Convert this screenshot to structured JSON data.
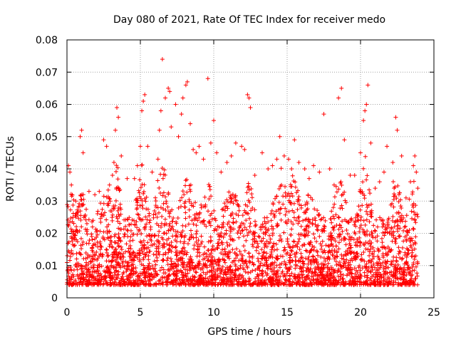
{
  "chart_data": {
    "type": "scatter",
    "title": "Day 080 of 2021, Rate Of TEC Index for receiver medo",
    "xlabel": "GPS time / hours",
    "ylabel": "ROTI / TECUs",
    "xlim": [
      0,
      25
    ],
    "ylim": [
      0,
      0.08
    ],
    "x_ticks": [
      0,
      5,
      10,
      15,
      20,
      25
    ],
    "x_tick_labels": [
      "0",
      "5",
      "10",
      "15",
      "20",
      "25"
    ],
    "y_ticks": [
      0,
      0.01,
      0.02,
      0.03,
      0.04,
      0.05,
      0.06,
      0.07,
      0.08
    ],
    "y_tick_labels": [
      "0",
      "0.01",
      "0.02",
      "0.03",
      "0.04",
      "0.05",
      "0.06",
      "0.07",
      "0.08"
    ],
    "grid": true,
    "marker": "plus",
    "color": "#ff0000",
    "series": [
      {
        "points": [
          [
            0.1,
            0.041
          ],
          [
            0.2,
            0.039
          ],
          [
            0.3,
            0.035
          ],
          [
            0.6,
            0.03
          ],
          [
            0.9,
            0.05
          ],
          [
            1.0,
            0.052
          ],
          [
            1.1,
            0.045
          ],
          [
            1.5,
            0.033
          ],
          [
            1.9,
            0.032
          ],
          [
            2.2,
            0.033
          ],
          [
            2.5,
            0.049
          ],
          [
            2.7,
            0.047
          ],
          [
            2.9,
            0.035
          ],
          [
            3.1,
            0.038
          ],
          [
            3.2,
            0.042
          ],
          [
            3.3,
            0.052
          ],
          [
            3.4,
            0.059
          ],
          [
            3.5,
            0.056
          ],
          [
            3.7,
            0.044
          ],
          [
            4.1,
            0.037
          ],
          [
            4.6,
            0.037
          ],
          [
            4.8,
            0.041
          ],
          [
            5.0,
            0.047
          ],
          [
            5.1,
            0.058
          ],
          [
            5.2,
            0.061
          ],
          [
            5.3,
            0.063
          ],
          [
            5.5,
            0.047
          ],
          [
            5.8,
            0.039
          ],
          [
            6.2,
            0.043
          ],
          [
            6.3,
            0.052
          ],
          [
            6.4,
            0.058
          ],
          [
            6.5,
            0.074
          ],
          [
            6.7,
            0.062
          ],
          [
            6.9,
            0.065
          ],
          [
            7.0,
            0.064
          ],
          [
            7.1,
            0.053
          ],
          [
            7.4,
            0.06
          ],
          [
            7.6,
            0.05
          ],
          [
            7.8,
            0.057
          ],
          [
            7.9,
            0.062
          ],
          [
            8.1,
            0.066
          ],
          [
            8.2,
            0.067
          ],
          [
            8.4,
            0.054
          ],
          [
            8.6,
            0.046
          ],
          [
            8.8,
            0.045
          ],
          [
            9.0,
            0.047
          ],
          [
            9.3,
            0.043
          ],
          [
            9.6,
            0.068
          ],
          [
            9.8,
            0.048
          ],
          [
            10.0,
            0.055
          ],
          [
            10.2,
            0.045
          ],
          [
            10.5,
            0.039
          ],
          [
            10.9,
            0.042
          ],
          [
            11.2,
            0.044
          ],
          [
            11.5,
            0.048
          ],
          [
            11.9,
            0.047
          ],
          [
            12.1,
            0.046
          ],
          [
            12.3,
            0.063
          ],
          [
            12.4,
            0.062
          ],
          [
            12.5,
            0.059
          ],
          [
            12.8,
            0.038
          ],
          [
            13.3,
            0.045
          ],
          [
            13.7,
            0.04
          ],
          [
            14.0,
            0.041
          ],
          [
            14.3,
            0.043
          ],
          [
            14.5,
            0.05
          ],
          [
            14.8,
            0.044
          ],
          [
            15.1,
            0.043
          ],
          [
            15.3,
            0.04
          ],
          [
            15.5,
            0.049
          ],
          [
            15.8,
            0.042
          ],
          [
            16.2,
            0.04
          ],
          [
            16.5,
            0.037
          ],
          [
            16.8,
            0.041
          ],
          [
            17.2,
            0.039
          ],
          [
            17.5,
            0.057
          ],
          [
            17.9,
            0.04
          ],
          [
            18.2,
            0.035
          ],
          [
            18.5,
            0.062
          ],
          [
            18.7,
            0.065
          ],
          [
            18.9,
            0.049
          ],
          [
            19.3,
            0.038
          ],
          [
            19.6,
            0.038
          ],
          [
            20.0,
            0.045
          ],
          [
            20.2,
            0.055
          ],
          [
            20.3,
            0.058
          ],
          [
            20.4,
            0.06
          ],
          [
            20.5,
            0.066
          ],
          [
            20.7,
            0.048
          ],
          [
            21.0,
            0.034
          ],
          [
            21.3,
            0.036
          ],
          [
            21.6,
            0.039
          ],
          [
            21.8,
            0.047
          ],
          [
            22.2,
            0.042
          ],
          [
            22.4,
            0.056
          ],
          [
            22.5,
            0.052
          ],
          [
            22.8,
            0.044
          ],
          [
            23.1,
            0.031
          ],
          [
            23.4,
            0.036
          ],
          [
            23.6,
            0.041
          ],
          [
            23.7,
            0.044
          ],
          [
            23.8,
            0.039
          ],
          [
            23.9,
            0.034
          ]
        ],
        "dense_band": {
          "x_range": [
            0.0,
            23.9
          ],
          "y_floor": 0.004,
          "y_base_ceiling": 0.025,
          "bursts": [
            {
              "x": 0.3,
              "width": 0.6,
              "height": 0.033
            },
            {
              "x": 1.0,
              "width": 0.5,
              "height": 0.034
            },
            {
              "x": 2.6,
              "width": 0.6,
              "height": 0.038
            },
            {
              "x": 3.4,
              "width": 0.5,
              "height": 0.043
            },
            {
              "x": 5.1,
              "width": 0.6,
              "height": 0.042
            },
            {
              "x": 6.5,
              "width": 0.8,
              "height": 0.044
            },
            {
              "x": 8.2,
              "width": 0.8,
              "height": 0.04
            },
            {
              "x": 9.6,
              "width": 0.7,
              "height": 0.037
            },
            {
              "x": 11.2,
              "width": 0.9,
              "height": 0.035
            },
            {
              "x": 12.4,
              "width": 0.5,
              "height": 0.038
            },
            {
              "x": 14.6,
              "width": 0.8,
              "height": 0.041
            },
            {
              "x": 15.5,
              "width": 0.9,
              "height": 0.04
            },
            {
              "x": 16.5,
              "width": 0.8,
              "height": 0.033
            },
            {
              "x": 18.6,
              "width": 0.7,
              "height": 0.041
            },
            {
              "x": 20.3,
              "width": 0.6,
              "height": 0.045
            },
            {
              "x": 22.4,
              "width": 0.5,
              "height": 0.042
            },
            {
              "x": 23.6,
              "width": 0.5,
              "height": 0.038
            }
          ],
          "density_per_hour": 140
        }
      }
    ]
  }
}
